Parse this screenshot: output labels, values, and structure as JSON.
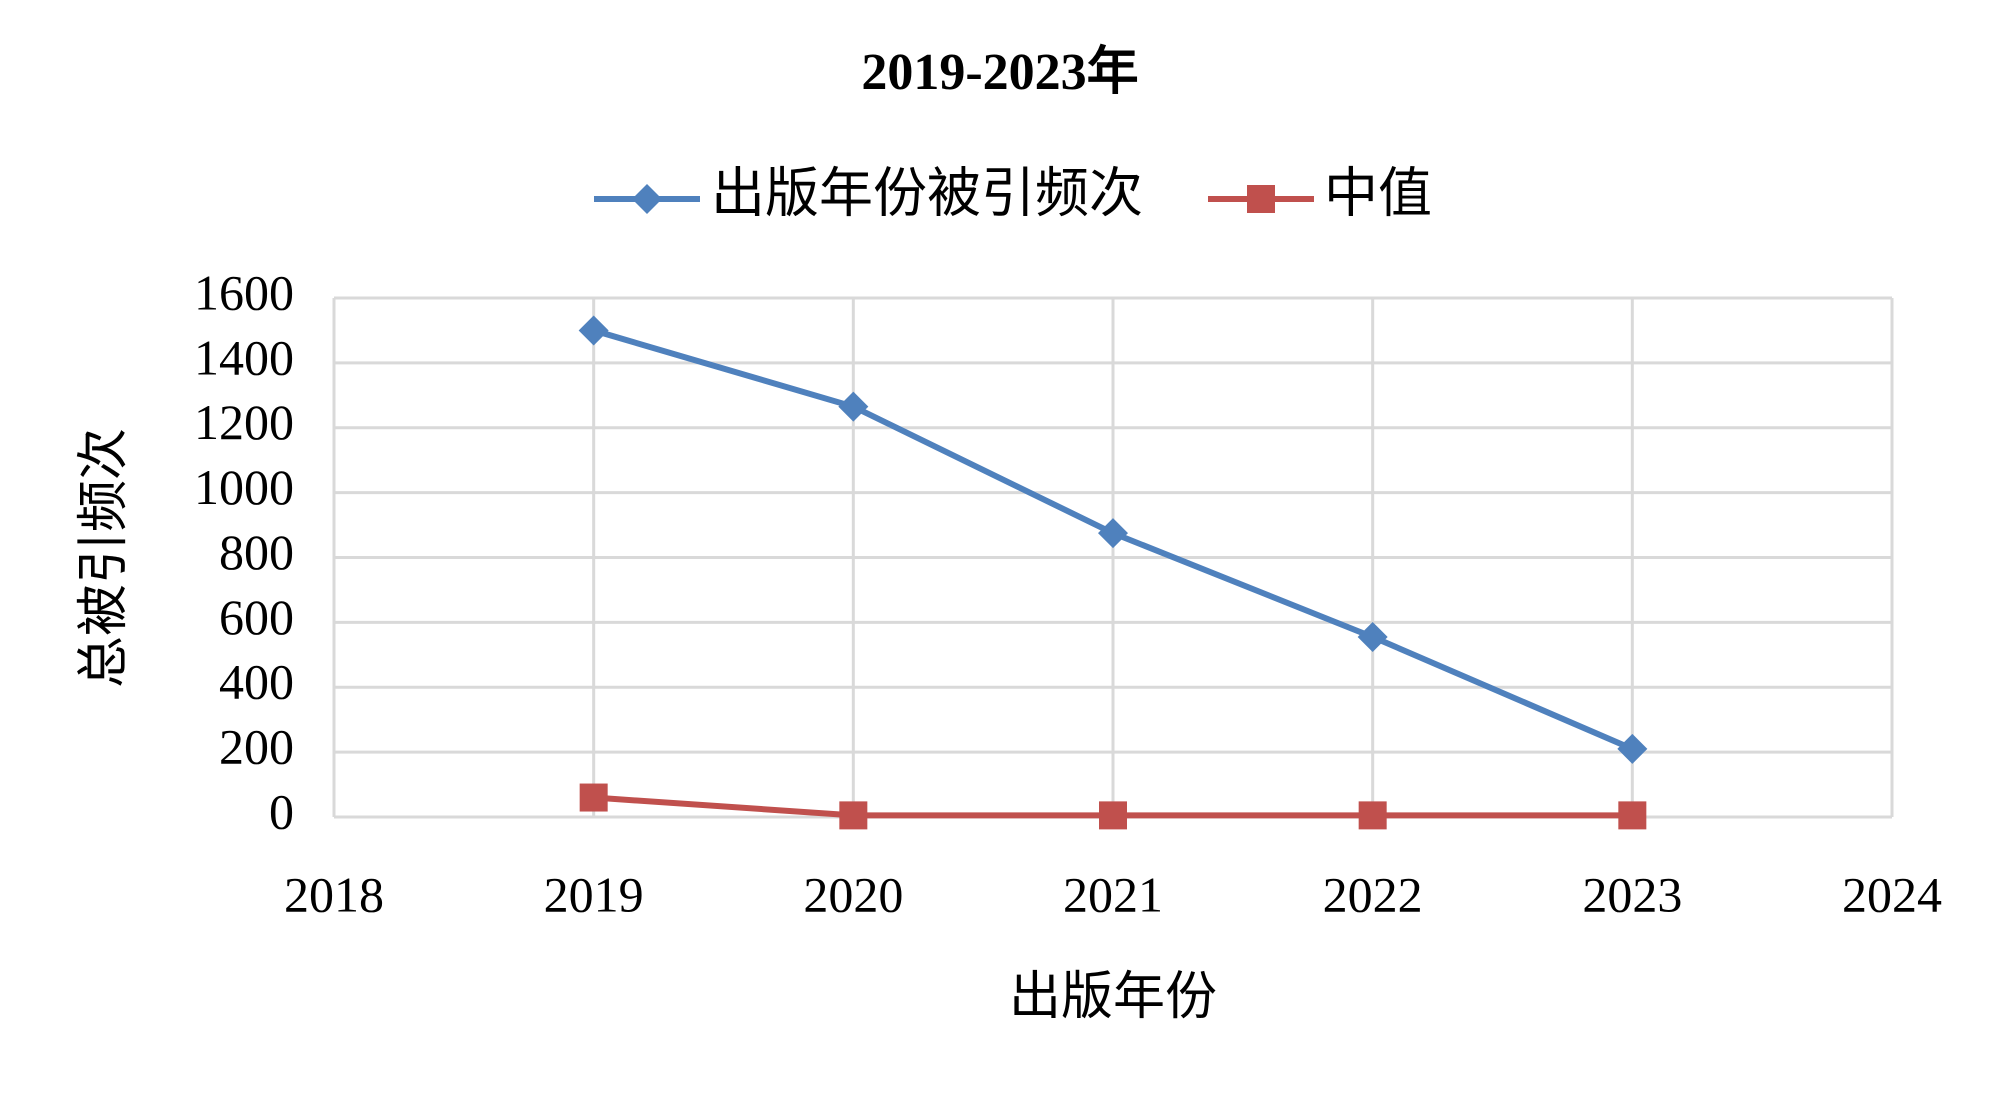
{
  "chart_data": {
    "type": "line",
    "title": "2019-2023年",
    "x_label": "出版年份",
    "y_label": "总被引频次",
    "x": [
      2019,
      2020,
      2021,
      2022,
      2023
    ],
    "series": [
      {
        "name": "出版年份被引频次",
        "color": "#4f81bd",
        "marker": "diamond",
        "values": [
          1500,
          1265,
          875,
          555,
          210
        ]
      },
      {
        "name": "中值",
        "color": "#c0504d",
        "marker": "square",
        "values": [
          60,
          5,
          5,
          5,
          5
        ]
      }
    ],
    "xlim": [
      2018,
      2024
    ],
    "xticks": [
      2018,
      2019,
      2020,
      2021,
      2022,
      2023,
      2024
    ],
    "ylim": [
      0,
      1600
    ],
    "yticks": [
      0,
      200,
      400,
      600,
      800,
      1000,
      1200,
      1400,
      1600
    ],
    "grid": true,
    "legend": "top"
  }
}
